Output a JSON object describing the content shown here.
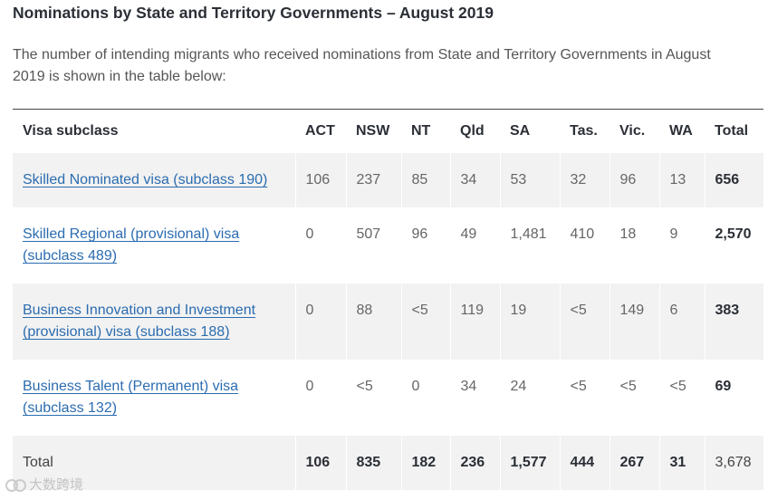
{
  "title": "Nominations by State and Territory Governments – August 2019",
  "intro": "The number of intending migrants who received nominations from State and Territory Governments in August 2019 is shown in the table below:",
  "table": {
    "headers": [
      "Visa subclass",
      "ACT",
      "NSW",
      "NT",
      "Qld",
      "SA",
      "Tas.",
      "Vic.",
      "WA",
      "Total"
    ],
    "rows": [
      {
        "visa": "Skilled Nominated visa (subclass 190)",
        "values": [
          "106",
          "237",
          "85",
          "34",
          "53",
          "32",
          "96",
          "13"
        ],
        "total": "656"
      },
      {
        "visa": "Skilled Regional (provisional) visa (subclass 489)",
        "values": [
          "0",
          "507",
          "96",
          "49",
          "1,481",
          "410",
          "18",
          "9"
        ],
        "total": "2,570"
      },
      {
        "visa": "Business Innovation and Investment (provisional) visa (subclass 188)",
        "values": [
          "0",
          "88",
          "<5",
          "119",
          "19",
          "<5",
          "149",
          "6"
        ],
        "total": "383"
      },
      {
        "visa": "Business Talent (Permanent) visa (subclass 132)",
        "values": [
          "0",
          "<5",
          "0",
          "34",
          "24",
          "<5",
          "<5",
          "<5"
        ],
        "total": "69"
      }
    ],
    "total_row": {
      "label": "Total",
      "values": [
        "106",
        "835",
        "182",
        "236",
        "1,577",
        "444",
        "267",
        "31"
      ],
      "total": "3,678"
    }
  },
  "watermark": "大数跨境",
  "colors": {
    "link": "#2b6cb0",
    "shade": "#f2f2f2",
    "heading": "#2b2f36"
  }
}
